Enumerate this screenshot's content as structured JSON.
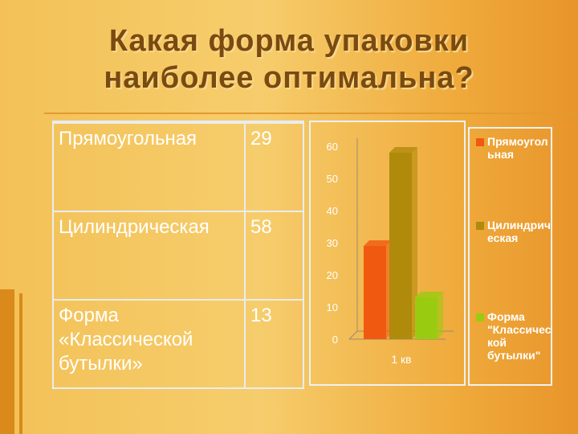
{
  "title_line1": "Какая форма упаковки",
  "title_line2": "наиболее оптимальна?",
  "table": [
    {
      "name": "Прямоугольная",
      "value": "29"
    },
    {
      "name": "Цилиндрическая",
      "value": "58"
    },
    {
      "name": "Форма «Классической бутылки»",
      "value": "13"
    }
  ],
  "colors": {
    "title": "#7a4a10",
    "series1": "#f05a10",
    "series2": "#b08a0a",
    "series3": "#99cc10",
    "axis_text": "#ffffff"
  },
  "chart_data": {
    "type": "bar",
    "categories": [
      "1 кв"
    ],
    "series": [
      {
        "name": "Прямоугольная",
        "values": [
          29
        ]
      },
      {
        "name": "Цилиндрическая",
        "values": [
          58
        ]
      },
      {
        "name": "Форма \"Классической бутылки\"",
        "values": [
          13
        ]
      }
    ],
    "title": "",
    "xlabel": "",
    "ylabel": "",
    "ylim": [
      0,
      60
    ],
    "yticks": [
      0,
      10,
      20,
      30,
      40,
      50,
      60
    ],
    "grid": false,
    "legend": "right"
  },
  "legend": [
    "Прямоугольная",
    "Цилиндрическая",
    "Форма \"Классической бутылки\""
  ]
}
